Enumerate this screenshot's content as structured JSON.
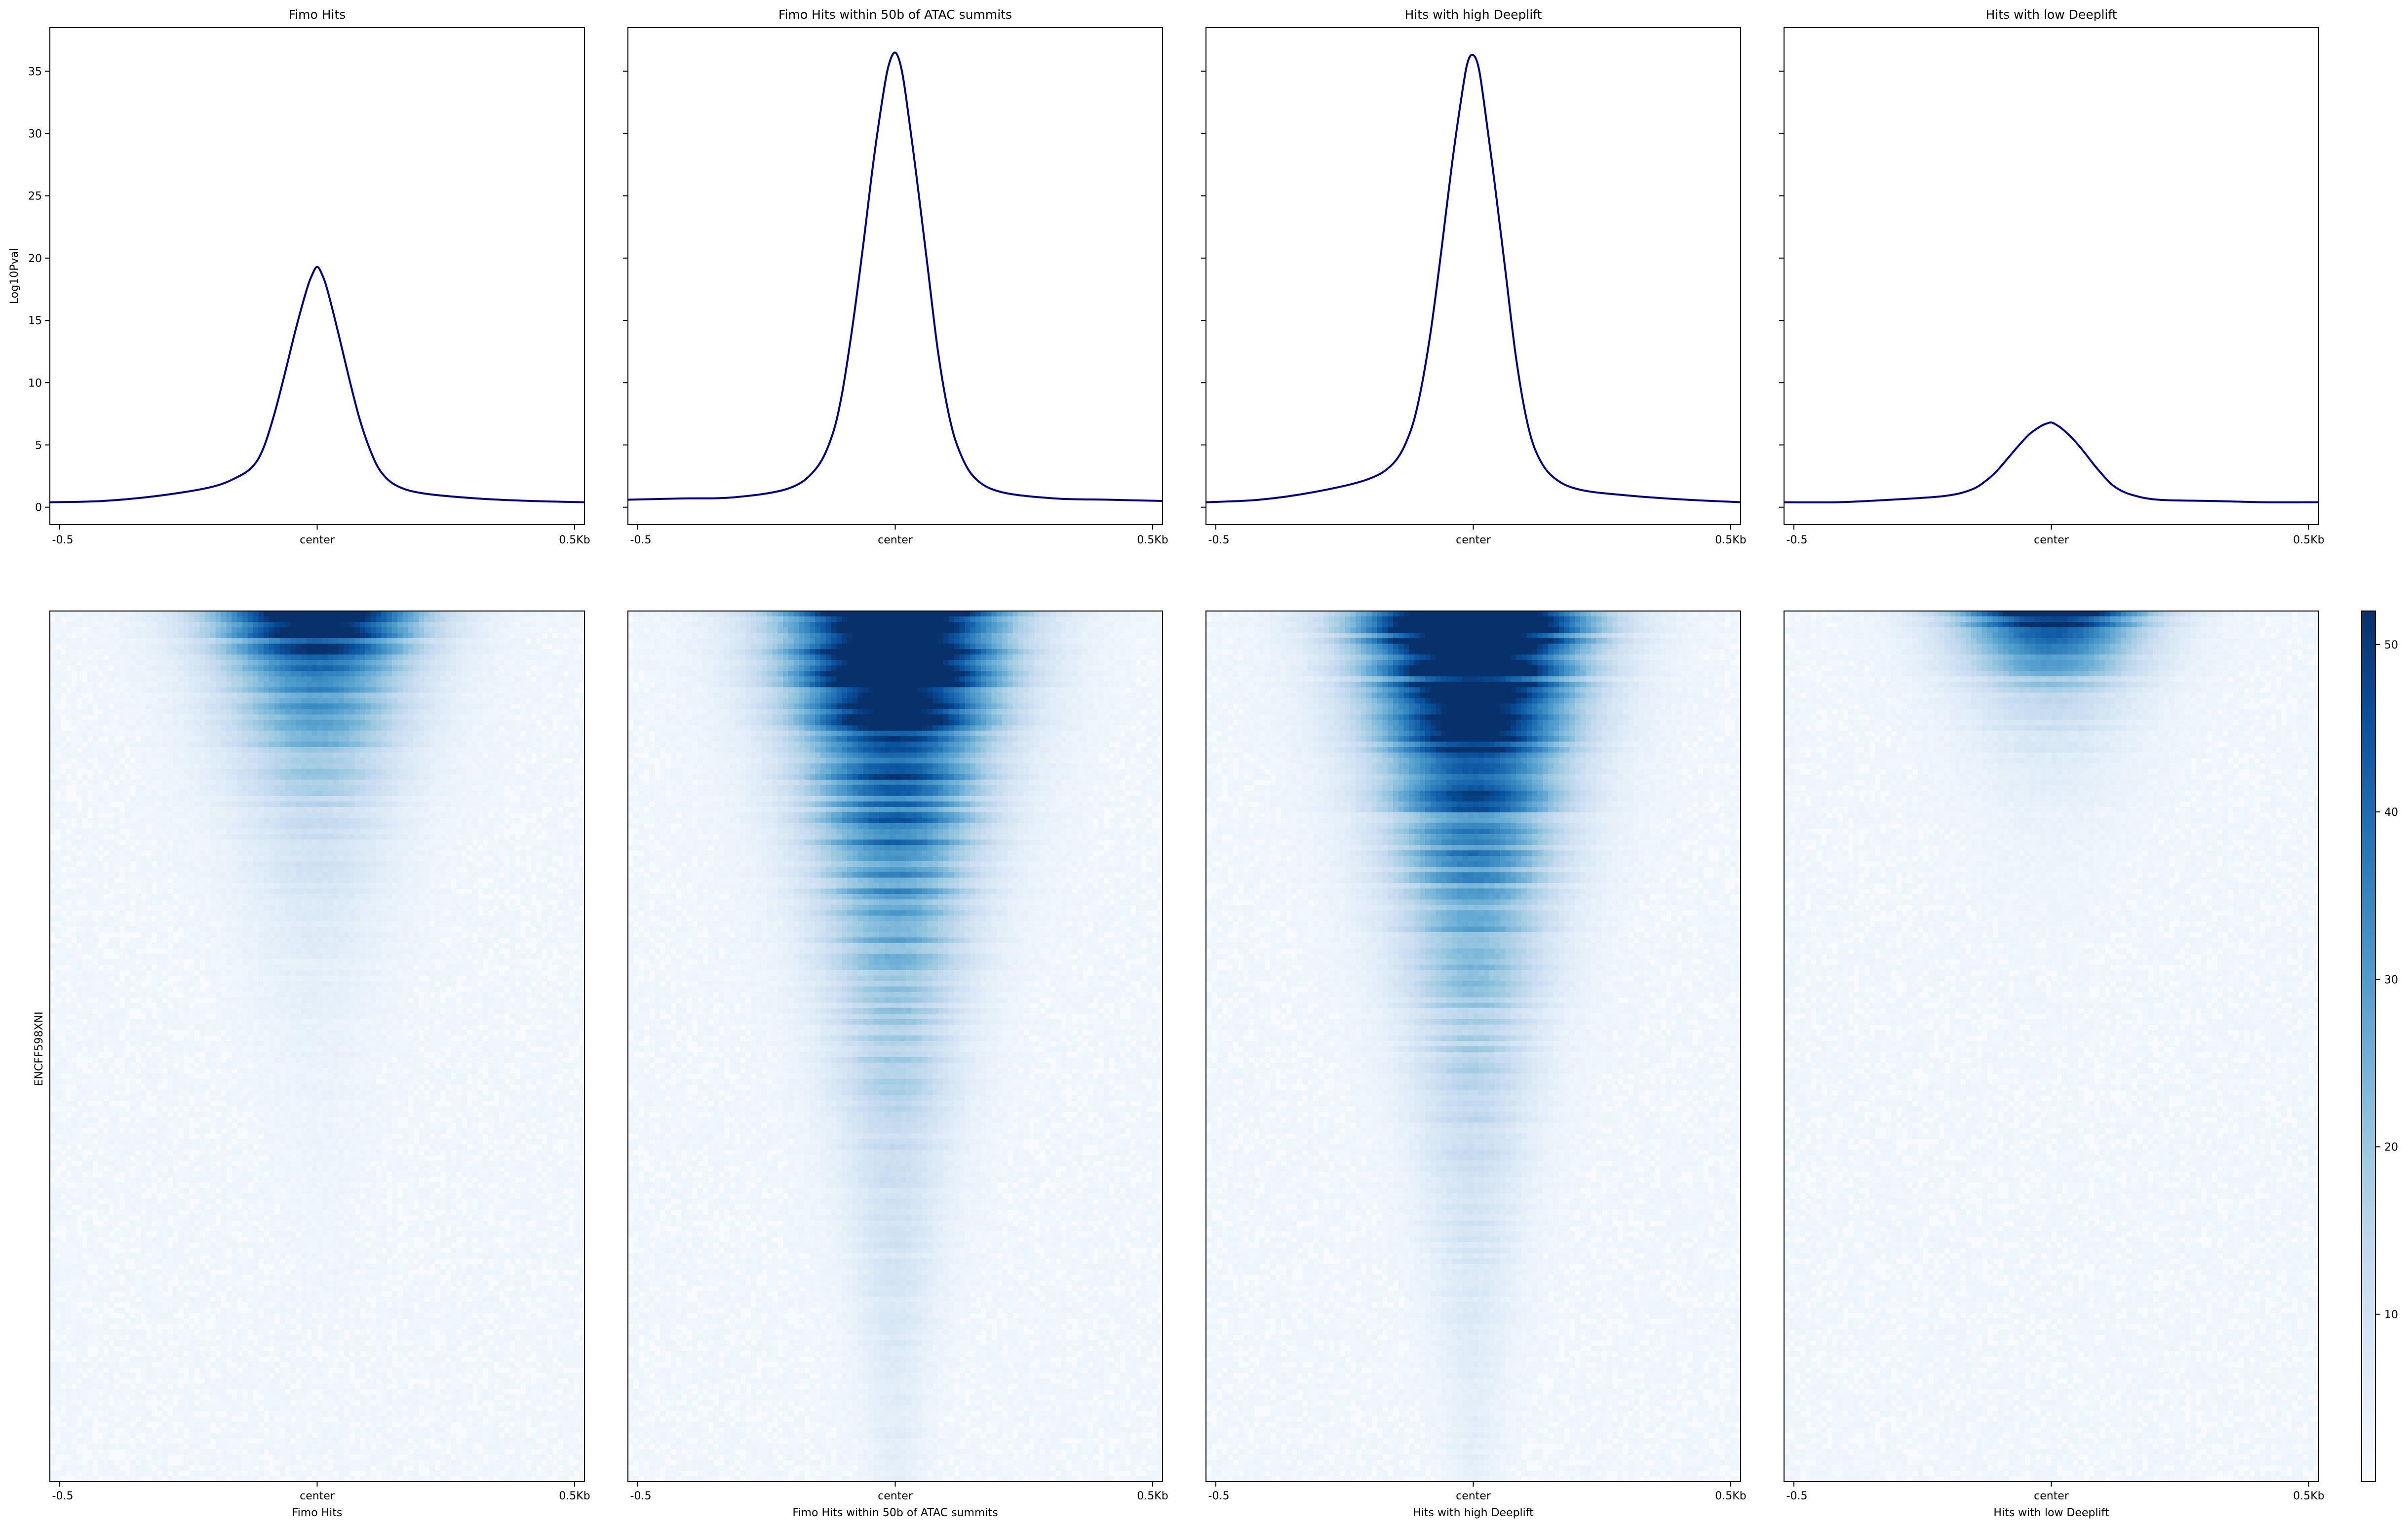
{
  "figure": {
    "heatmap_ylabel": "ENCFF598XNI",
    "colorbar": {
      "colormap": "Blues",
      "range": [
        0,
        52
      ],
      "ticks": [
        10,
        20,
        30,
        40,
        50
      ]
    }
  },
  "chart_data": [
    {
      "type": "line",
      "title": "Fimo Hits",
      "xlabel": "",
      "ylabel": "Log10Pval",
      "x_ticks": [
        "-0.5",
        "center",
        "0.5Kb"
      ],
      "y_ticks": [
        0,
        5,
        10,
        15,
        20,
        25,
        30,
        35
      ],
      "xlim": [
        -0.5,
        0.5
      ],
      "ylim": [
        -1.4,
        38.5
      ],
      "grid": false,
      "series": [
        {
          "color": "#00008b",
          "x": [
            -0.5,
            -0.4,
            -0.3,
            -0.2,
            -0.15,
            -0.12,
            -0.1,
            -0.08,
            -0.06,
            -0.04,
            -0.02,
            -0.01,
            0,
            0.01,
            0.02,
            0.04,
            0.06,
            0.08,
            0.1,
            0.12,
            0.15,
            0.2,
            0.3,
            0.4,
            0.5
          ],
          "y": [
            0.4,
            0.5,
            0.9,
            1.6,
            2.4,
            3.3,
            4.8,
            7.5,
            10.8,
            14.3,
            17.4,
            18.6,
            19.3,
            18.6,
            17.3,
            13.9,
            10.3,
            7.0,
            4.5,
            2.8,
            1.7,
            1.1,
            0.7,
            0.5,
            0.4
          ]
        }
      ]
    },
    {
      "type": "line",
      "title": "Fimo Hits within 50b of ATAC summits",
      "xlabel": "",
      "ylabel": "",
      "x_ticks": [
        "-0.5",
        "center",
        "0.5Kb"
      ],
      "y_ticks": [
        0,
        5,
        10,
        15,
        20,
        25,
        30,
        35
      ],
      "xlim": [
        -0.5,
        0.5
      ],
      "ylim": [
        -1.4,
        38.5
      ],
      "grid": false,
      "series": [
        {
          "color": "#00008b",
          "x": [
            -0.5,
            -0.4,
            -0.3,
            -0.2,
            -0.15,
            -0.12,
            -0.1,
            -0.08,
            -0.06,
            -0.04,
            -0.02,
            -0.01,
            0,
            0.01,
            0.02,
            0.04,
            0.06,
            0.08,
            0.1,
            0.12,
            0.15,
            0.2,
            0.3,
            0.4,
            0.5
          ],
          "y": [
            0.6,
            0.7,
            0.8,
            1.5,
            3.0,
            5.5,
            9.0,
            14.5,
            21.0,
            28.0,
            33.8,
            35.8,
            36.5,
            35.5,
            33.0,
            26.5,
            19.5,
            12.5,
            7.5,
            4.5,
            2.3,
            1.2,
            0.7,
            0.6,
            0.5
          ]
        }
      ]
    },
    {
      "type": "line",
      "title": "Hits with high Deeplift",
      "xlabel": "",
      "ylabel": "",
      "x_ticks": [
        "-0.5",
        "center",
        "0.5Kb"
      ],
      "y_ticks": [
        0,
        5,
        10,
        15,
        20,
        25,
        30,
        35
      ],
      "xlim": [
        -0.5,
        0.5
      ],
      "ylim": [
        -1.4,
        38.5
      ],
      "grid": false,
      "series": [
        {
          "color": "#00008b",
          "x": [
            -0.5,
            -0.4,
            -0.3,
            -0.2,
            -0.15,
            -0.12,
            -0.1,
            -0.08,
            -0.06,
            -0.04,
            -0.02,
            -0.01,
            0,
            0.01,
            0.02,
            0.04,
            0.06,
            0.08,
            0.1,
            0.12,
            0.15,
            0.2,
            0.3,
            0.4,
            0.5
          ],
          "y": [
            0.4,
            0.6,
            1.2,
            2.2,
            3.5,
            5.8,
            9.0,
            14.0,
            20.5,
            27.5,
            33.5,
            35.8,
            36.3,
            35.3,
            32.5,
            26.0,
            19.0,
            12.0,
            7.0,
            4.2,
            2.4,
            1.4,
            0.9,
            0.6,
            0.4
          ]
        }
      ]
    },
    {
      "type": "line",
      "title": "Hits with low Deeplift",
      "xlabel": "",
      "ylabel": "",
      "x_ticks": [
        "-0.5",
        "center",
        "0.5Kb"
      ],
      "y_ticks": [
        0,
        5,
        10,
        15,
        20,
        25,
        30,
        35
      ],
      "xlim": [
        -0.5,
        0.5
      ],
      "ylim": [
        -1.4,
        38.5
      ],
      "grid": false,
      "series": [
        {
          "color": "#00008b",
          "x": [
            -0.5,
            -0.4,
            -0.3,
            -0.2,
            -0.15,
            -0.12,
            -0.1,
            -0.08,
            -0.06,
            -0.04,
            -0.02,
            -0.01,
            0,
            0.01,
            0.02,
            0.04,
            0.06,
            0.08,
            0.1,
            0.12,
            0.15,
            0.2,
            0.3,
            0.4,
            0.5
          ],
          "y": [
            0.4,
            0.4,
            0.6,
            0.9,
            1.4,
            2.2,
            3.0,
            4.0,
            5.0,
            5.9,
            6.5,
            6.7,
            6.8,
            6.6,
            6.3,
            5.5,
            4.5,
            3.4,
            2.4,
            1.6,
            1.0,
            0.6,
            0.5,
            0.4,
            0.4
          ]
        }
      ]
    },
    {
      "type": "heatmap",
      "title": "",
      "xlabel": "Fimo Hits",
      "ylabel": "ENCFF598XNI",
      "x_ticks": [
        "-0.5",
        "center",
        "0.5Kb"
      ],
      "colormap": "Blues",
      "value_range": [
        0,
        52
      ],
      "profile": {
        "peak": 60,
        "width_top": 0.13,
        "width_bottom": 0.02,
        "decay": 2.4,
        "center_offset": 0.0
      }
    },
    {
      "type": "heatmap",
      "title": "",
      "xlabel": "Fimo Hits within 50b of ATAC summits",
      "ylabel": "",
      "x_ticks": [
        "-0.5",
        "center",
        "0.5Kb"
      ],
      "colormap": "Blues",
      "value_range": [
        0,
        52
      ],
      "profile": {
        "peak": 80,
        "width_top": 0.14,
        "width_bottom": 0.03,
        "decay": 1.1,
        "center_offset": 0.0
      }
    },
    {
      "type": "heatmap",
      "title": "",
      "xlabel": "Hits with high Deeplift",
      "ylabel": "",
      "x_ticks": [
        "-0.5",
        "center",
        "0.5Kb"
      ],
      "colormap": "Blues",
      "value_range": [
        0,
        52
      ],
      "profile": {
        "peak": 80,
        "width_top": 0.14,
        "width_bottom": 0.03,
        "decay": 1.15,
        "center_offset": 0.0
      }
    },
    {
      "type": "heatmap",
      "title": "",
      "xlabel": "Hits with low Deeplift",
      "ylabel": "",
      "x_ticks": [
        "-0.5",
        "center",
        "0.5Kb"
      ],
      "colormap": "Blues",
      "value_range": [
        0,
        52
      ],
      "profile": {
        "peak": 60,
        "width_top": 0.12,
        "width_bottom": 0.04,
        "decay": 5.0,
        "center_offset": 0.0
      }
    }
  ]
}
